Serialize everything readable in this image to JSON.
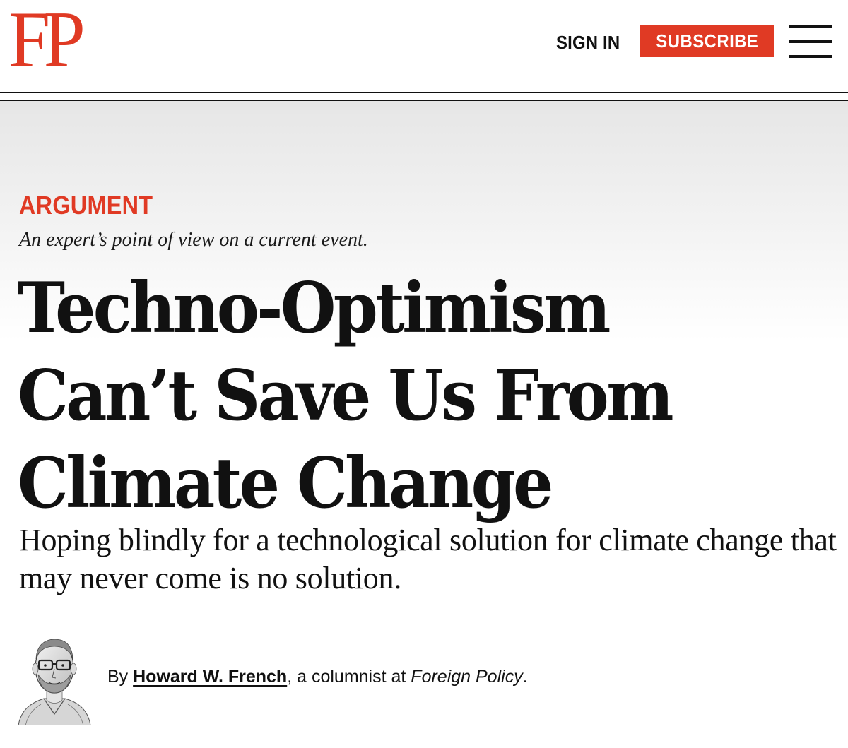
{
  "header": {
    "logo_text": "FP",
    "sign_in_label": "SIGN IN",
    "subscribe_label": "SUBSCRIBE",
    "menu_icon": "hamburger-menu-icon",
    "brand_color": "#e03a24"
  },
  "article": {
    "kicker": "ARGUMENT",
    "kicker_description": "An expert’s point of view on a current event.",
    "headline_lines": [
      "Techno-Optimism",
      "Can’t Save Us From",
      "Climate Change"
    ],
    "deck": "Hoping blindly for a technological solution for climate change that may never come is no solution.",
    "byline": {
      "prefix": "By ",
      "author": "Howard W. French",
      "middle": ", a columnist at ",
      "publication": "Foreign Policy",
      "suffix": "."
    },
    "author_avatar": "author-portrait-illustration"
  }
}
